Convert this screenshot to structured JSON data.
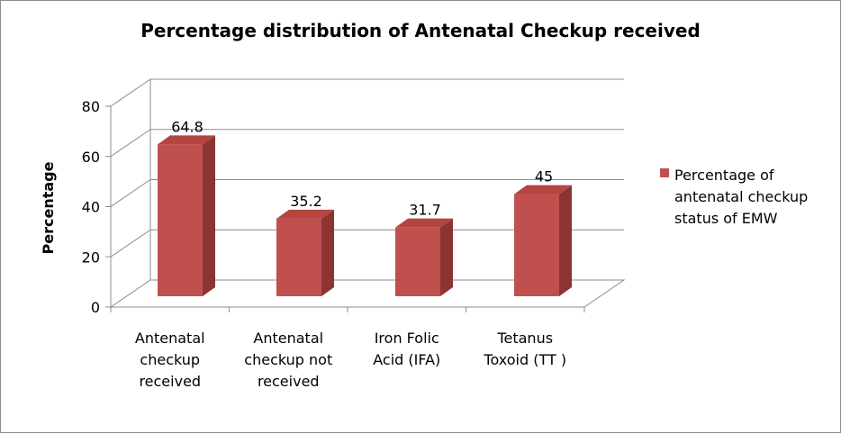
{
  "chart_data": {
    "type": "bar",
    "title": "Percentage distribution of Antenatal Checkup received",
    "ylabel": "Percentage",
    "xlabel": "",
    "ylim": [
      0,
      80
    ],
    "yticks": [
      "0",
      "20",
      "40",
      "60",
      "80"
    ],
    "categories": [
      [
        "Antenatal",
        "checkup",
        "received"
      ],
      [
        "Antenatal",
        "checkup not",
        "received"
      ],
      [
        "Iron Folic",
        "Acid (IFA)"
      ],
      [
        "Tetanus",
        "Toxoid (TT )"
      ]
    ],
    "series": [
      {
        "name": "Percentage of antenatal checkup status of EMW",
        "name_lines": [
          "Percentage of",
          "antenatal checkup",
          "status of EMW"
        ],
        "values": [
          64.8,
          35.2,
          31.7,
          45
        ],
        "labels": [
          "64.8",
          "35.2",
          "31.7",
          "45"
        ],
        "color": "#c0504d",
        "color_side": "#8b3432",
        "color_top": "#b54541"
      }
    ],
    "legend_position": "right",
    "grid": true,
    "style": "3d-column"
  }
}
